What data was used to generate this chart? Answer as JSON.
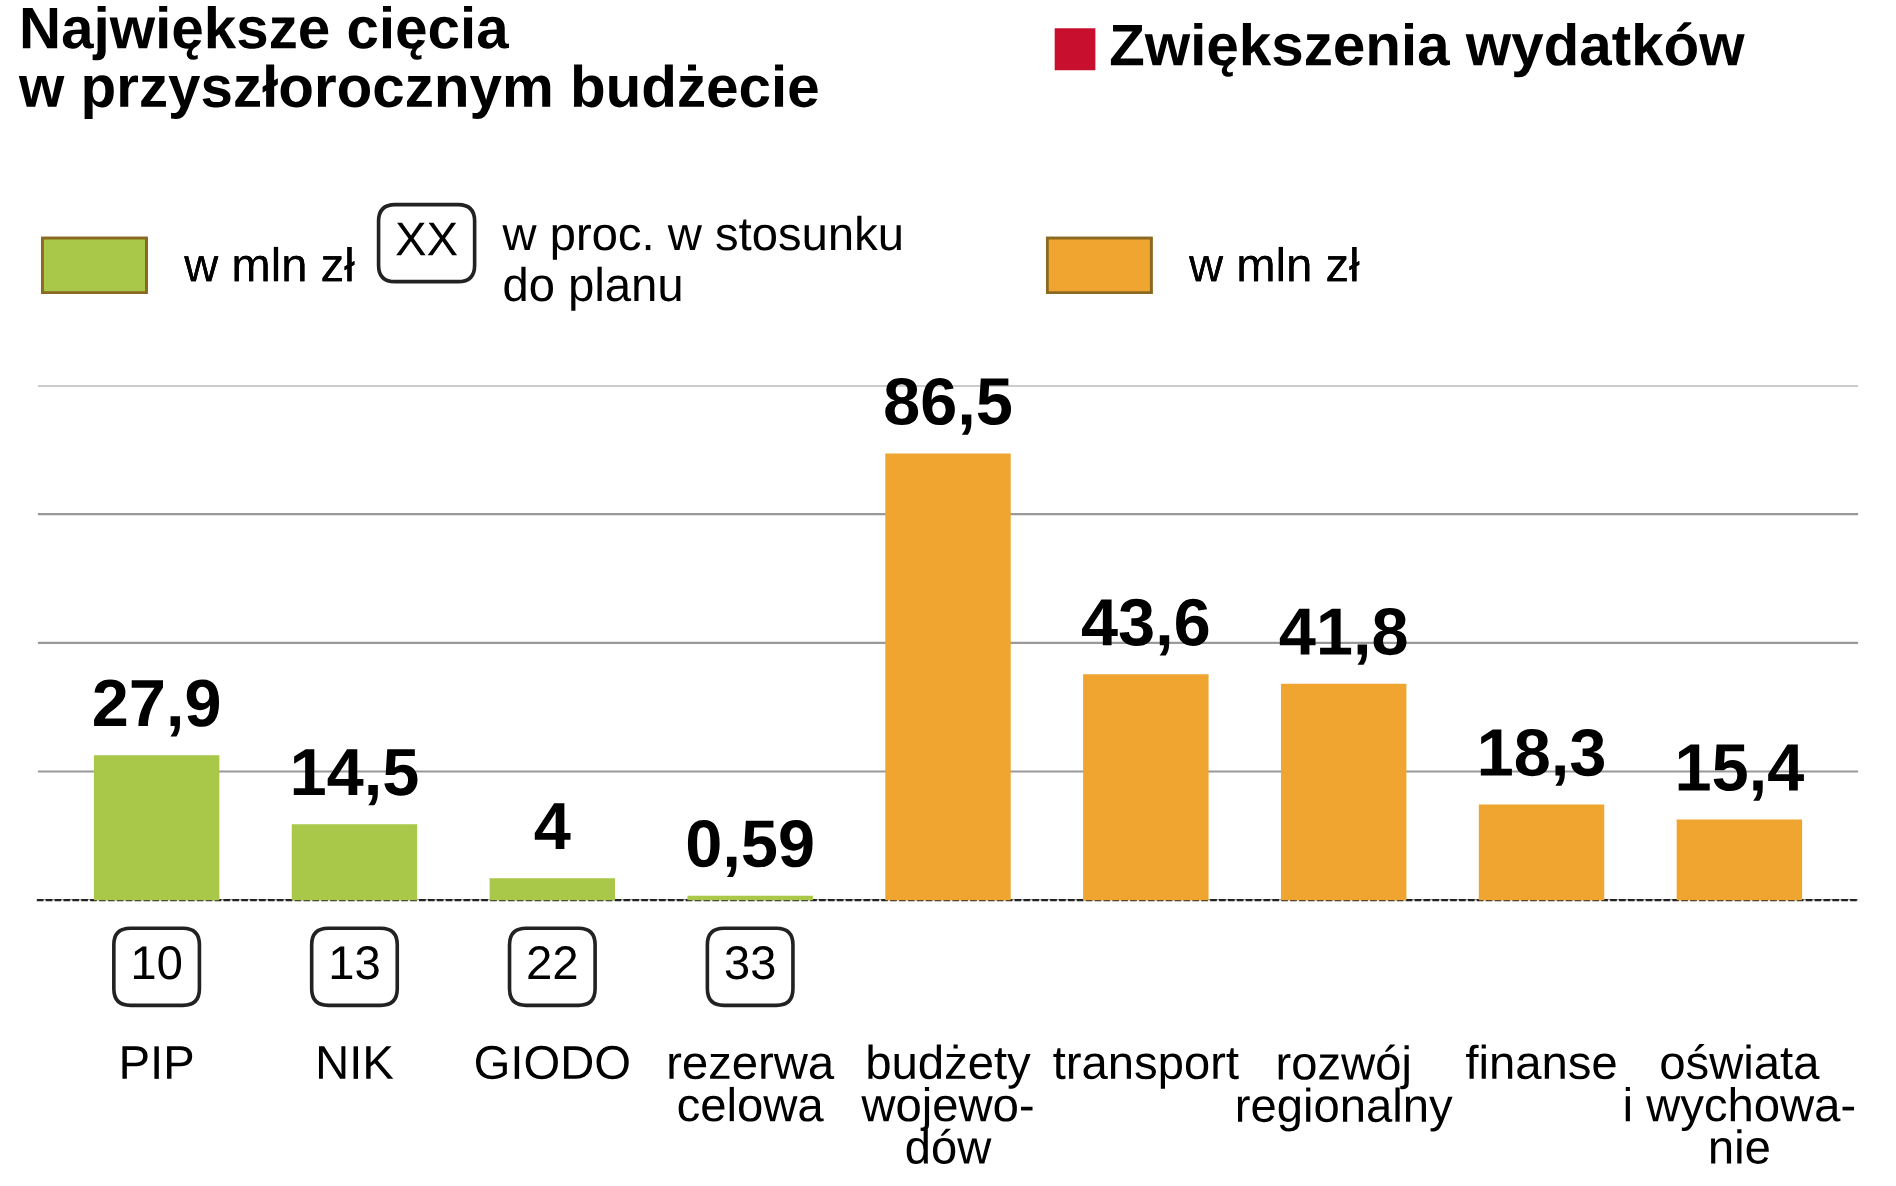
{
  "chart_data": {
    "type": "bar",
    "title": "Największe cięcia\nw przyszłorocznym budżecie",
    "subtitle": "Zwiększenia wydatków",
    "categories": [
      "PIP",
      "NIK",
      "GIODO",
      "rezerwa\ncelowa",
      "budżety\nwojewo-\ndów",
      "transport",
      "rozwój\nregionalny",
      "finanse",
      "oświata\ni wychowa-\nnie"
    ],
    "series": [
      {
        "name": "w mln zł",
        "color": "#a9c84a",
        "values": [
          27.9,
          14.5,
          4,
          0.59,
          null,
          null,
          null,
          null,
          null
        ],
        "value_labels": [
          "27,9",
          "14,5",
          "4",
          "0,59",
          null,
          null,
          null,
          null,
          null
        ]
      },
      {
        "name": "w mln zł",
        "color": "#f0a530",
        "values": [
          null,
          null,
          null,
          null,
          86.5,
          43.6,
          41.8,
          18.3,
          15.4
        ],
        "value_labels": [
          null,
          null,
          null,
          null,
          "86,5",
          "43,6",
          "41,8",
          "18,3",
          "15,4"
        ]
      }
    ],
    "annotations": [
      "XX",
      "w proc. w stosunku\ndo planu",
      "10",
      "13",
      "22",
      "33"
    ],
    "ylim": [
      0,
      100
    ],
    "yticks": [
      {
        "value": 0,
        "label": null
      },
      {
        "value": 25,
        "label": null
      },
      {
        "value": 50,
        "label": null
      },
      {
        "value": 75,
        "label": null
      },
      {
        "value": 100,
        "label": null
      }
    ],
    "grid": "y",
    "legend": "top",
    "tick_labels": "x"
  }
}
